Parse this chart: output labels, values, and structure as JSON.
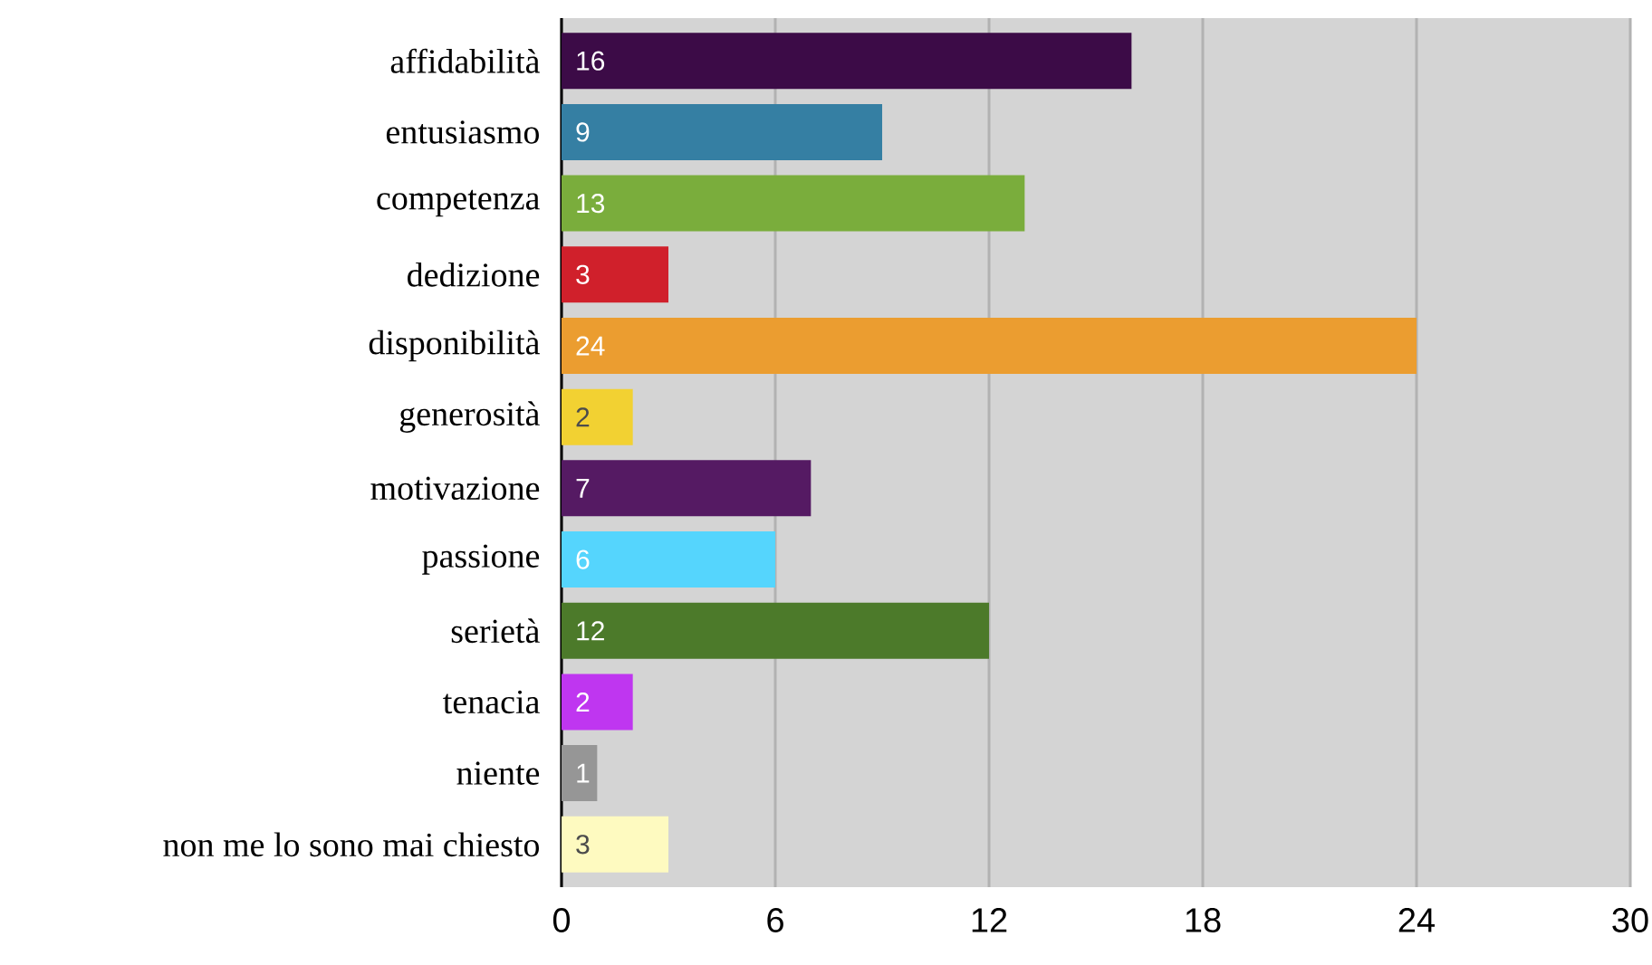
{
  "chart_data": {
    "type": "bar",
    "orientation": "horizontal",
    "categories": [
      "affidabilità",
      "entusiasmo",
      "competenza",
      "dedizione",
      "disponibilità",
      "generosità",
      "motivazione",
      "passione",
      "serietà",
      "tenacia",
      "niente",
      "non me lo sono mai chiesto"
    ],
    "values": [
      16,
      9,
      13,
      3,
      24,
      2,
      7,
      6,
      12,
      2,
      1,
      3
    ],
    "colors": [
      "#3c0b47",
      "#357fa3",
      "#7aad3c",
      "#d0202b",
      "#eb9d30",
      "#f2d132",
      "#551a63",
      "#55d5fd",
      "#4c7a2a",
      "#bf36f0",
      "#969696",
      "#fefac0"
    ],
    "xlim": [
      0,
      30
    ],
    "xticks": [
      0,
      6,
      12,
      18,
      24,
      30
    ],
    "grid": "x",
    "data_labels": true
  }
}
